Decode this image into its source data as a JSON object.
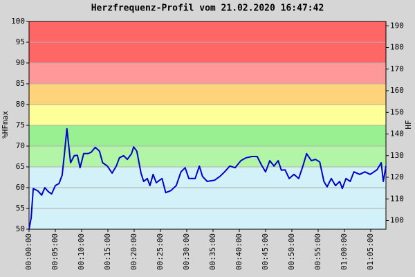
{
  "chart_data": {
    "type": "line",
    "title": "Herzfrequenz-Profil vom 21.02.2020 16:47:42",
    "ylabel": "%HFmax",
    "y2label": "HF",
    "color": "#0000cc",
    "grid": true,
    "xlim": [
      0,
      67.9
    ],
    "xticks": [
      {
        "value": 0,
        "label": "00:00:00"
      },
      {
        "value": 5,
        "label": "00:05:00"
      },
      {
        "value": 10,
        "label": "00:10:00"
      },
      {
        "value": 15,
        "label": "00:15:00"
      },
      {
        "value": 20,
        "label": "00:20:00"
      },
      {
        "value": 25,
        "label": "00:25:00"
      },
      {
        "value": 30,
        "label": "00:30:00"
      },
      {
        "value": 35,
        "label": "00:35:00"
      },
      {
        "value": 40,
        "label": "00:40:00"
      },
      {
        "value": 45,
        "label": "00:45:00"
      },
      {
        "value": 50,
        "label": "00:50:00"
      },
      {
        "value": 55,
        "label": "00:55:00"
      },
      {
        "value": 60,
        "label": "01:00:00"
      },
      {
        "value": 65,
        "label": "01:05:00"
      }
    ],
    "ylim": [
      50,
      100
    ],
    "yticks": [
      50,
      55,
      60,
      65,
      70,
      75,
      80,
      85,
      90,
      95,
      100
    ],
    "y2lim": [
      96,
      192
    ],
    "y2ticks": [
      100,
      110,
      120,
      130,
      140,
      150,
      160,
      170,
      180,
      190
    ],
    "zones": [
      {
        "from": 50,
        "to": 65,
        "color": "#d3f1f9"
      },
      {
        "from": 65,
        "to": 70,
        "color": "#b3f5a6"
      },
      {
        "from": 70,
        "to": 75,
        "color": "#99f090"
      },
      {
        "from": 75,
        "to": 80,
        "color": "#ffff99"
      },
      {
        "from": 80,
        "to": 85,
        "color": "#ffd37a"
      },
      {
        "from": 85,
        "to": 90,
        "color": "#ff9999"
      },
      {
        "from": 90,
        "to": 100,
        "color": "#ff6666"
      }
    ],
    "x": [
      0,
      0.4,
      0.8,
      1.7,
      2.4,
      3,
      3.7,
      4.3,
      5,
      5.7,
      6.3,
      6.8,
      7.2,
      7.9,
      8.6,
      9.2,
      9.7,
      10.4,
      11.2,
      11.8,
      12.6,
      13.4,
      14,
      14.9,
      15.8,
      16.6,
      17.2,
      18,
      18.7,
      19.5,
      19.9,
      20.5,
      21.3,
      21.8,
      22.5,
      23,
      23.6,
      24.2,
      25.3,
      26,
      27,
      28,
      28.9,
      29.7,
      30.4,
      31.6,
      32.4,
      33,
      33.9,
      35.3,
      36.3,
      37.2,
      38.2,
      39.2,
      40.3,
      41.3,
      42.4,
      43.4,
      44.2,
      45,
      45.8,
      46.6,
      47.4,
      48,
      48.7,
      49.5,
      50.4,
      51.3,
      52.1,
      52.8,
      53.7,
      54.5,
      55.3,
      56.1,
      56.7,
      57.5,
      58.3,
      59.1,
      59.6,
      60.3,
      61.1,
      61.8,
      62.9,
      63.9,
      64.9,
      66.2,
      67,
      67.4,
      67.9
    ],
    "values": [
      50,
      52.7,
      59.8,
      59.2,
      58.2,
      60,
      59,
      58.5,
      60.5,
      61,
      63,
      69,
      74.2,
      66,
      67.7,
      67.8,
      64.8,
      68.2,
      68.2,
      68.5,
      69.7,
      68.8,
      66,
      65.2,
      63.5,
      65.2,
      67.2,
      67.7,
      66.8,
      68.2,
      69.8,
      68.8,
      63.5,
      61.5,
      62.2,
      60.5,
      63.2,
      61.2,
      62.2,
      58.8,
      59.3,
      60.5,
      63.8,
      64.8,
      62.2,
      62.2,
      65.2,
      62.7,
      61.5,
      61.8,
      62.7,
      63.8,
      65.2,
      64.8,
      66.5,
      67.2,
      67.5,
      67.5,
      65.5,
      63.8,
      66.5,
      65.2,
      66.5,
      64.2,
      64.3,
      62.2,
      63.2,
      62.2,
      65.2,
      68.2,
      66.5,
      66.8,
      66.2,
      61.5,
      60.2,
      62.2,
      60.5,
      61.5,
      59.8,
      62.2,
      61.5,
      63.8,
      63.2,
      63.8,
      63.2,
      64.3,
      66,
      61.5,
      65.2
    ]
  }
}
